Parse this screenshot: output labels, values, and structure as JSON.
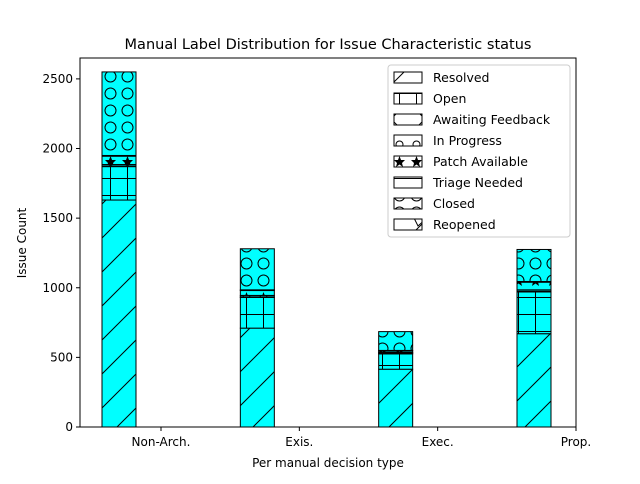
{
  "chart_data": {
    "type": "bar",
    "stacked": true,
    "title": "Manual Label Distribution for Issue Characteristic status",
    "xlabel": "Per manual decision type",
    "ylabel": "Issue Count",
    "categories": [
      "Non-Arch.",
      "Exis.",
      "Exec.",
      "Prop."
    ],
    "ylim": [
      0,
      2650
    ],
    "yticks": [
      0,
      500,
      1000,
      1500,
      2000,
      2500
    ],
    "bar_color": "#00FFFF",
    "edge_color": "#000000",
    "grid": false,
    "legend_position": "top-right",
    "series": [
      {
        "name": "Resolved",
        "hatch": "/",
        "values": [
          1630,
          710,
          415,
          670
        ]
      },
      {
        "name": "Open",
        "hatch": "+",
        "values": [
          240,
          220,
          110,
          300
        ]
      },
      {
        "name": "Awaiting Feedback",
        "hatch": "x",
        "values": [
          5,
          5,
          5,
          5
        ]
      },
      {
        "name": "In Progress",
        "hatch": "o",
        "values": [
          10,
          10,
          5,
          10
        ]
      },
      {
        "name": "Patch Available",
        "hatch": "*",
        "values": [
          60,
          35,
          10,
          55
        ]
      },
      {
        "name": "Triage Needed",
        "hatch": "-",
        "values": [
          5,
          5,
          5,
          5
        ]
      },
      {
        "name": "Closed",
        "hatch": "O",
        "values": [
          600,
          295,
          135,
          230
        ]
      },
      {
        "name": "Reopened",
        "hatch": "v",
        "values": [
          0,
          0,
          0,
          0
        ]
      }
    ]
  }
}
